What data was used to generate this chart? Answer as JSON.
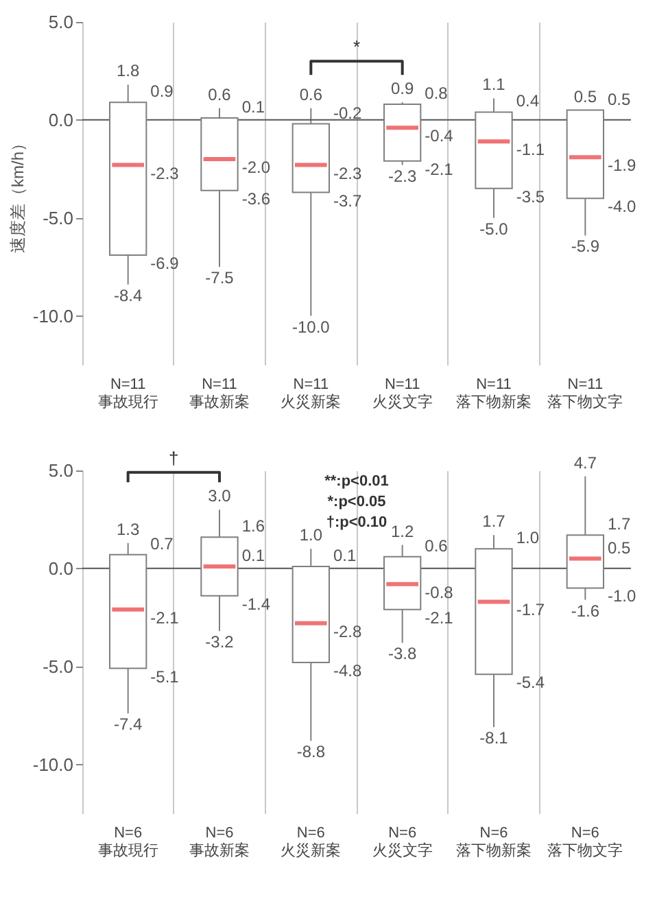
{
  "chart_data": [
    {
      "type": "box",
      "ylabel": "速度差（km/h）",
      "categories": [
        "N=11\n事故現行",
        "N=11\n事故新案",
        "N=11\n火災新案",
        "N=11\n火災文字",
        "N=11\n落下物新案",
        "N=11\n落下物文字"
      ],
      "boxes": [
        {
          "low": -8.4,
          "q1": -6.9,
          "median": -2.3,
          "q3": 0.9,
          "high": 1.8
        },
        {
          "low": -7.5,
          "q1": -3.6,
          "median": -2.0,
          "q3": 0.1,
          "high": 0.6
        },
        {
          "low": -10.0,
          "q1": -3.7,
          "median": -2.3,
          "q3": -0.2,
          "high": 0.6
        },
        {
          "low": -2.3,
          "q1": -2.1,
          "median": -0.4,
          "q3": 0.8,
          "high": 0.9
        },
        {
          "low": -5.0,
          "q1": -3.5,
          "median": -1.1,
          "q3": 0.4,
          "high": 1.1
        },
        {
          "low": -5.9,
          "q1": -4.0,
          "median": -1.9,
          "q3": 0.5,
          "high": 0.5
        }
      ],
      "ylim": [
        -12.5,
        5
      ],
      "yticks": [
        {
          "value": -10,
          "label": "-10.0"
        },
        {
          "value": -5,
          "label": "-5.0"
        },
        {
          "value": 0,
          "label": "0.0"
        },
        {
          "value": 5,
          "label": "5.0"
        }
      ],
      "grid": "x",
      "ref_lines": [
        {
          "axis": "y",
          "value": 0
        }
      ],
      "annotations": [
        "*",
        {
          "text": "1.8",
          "x": "N=11\n事故現行",
          "y": 1.8
        },
        {
          "text": "0.9",
          "x": "N=11\n事故現行",
          "y": 0.9
        },
        {
          "text": "-2.3",
          "x": "N=11\n事故現行",
          "y": -2.3
        },
        {
          "text": "-6.9",
          "x": "N=11\n事故現行",
          "y": -6.9
        },
        {
          "text": "-8.4",
          "x": "N=11\n事故現行",
          "y": -8.4
        },
        {
          "text": "0.6",
          "x": "N=11\n事故新案",
          "y": 0.6
        },
        {
          "text": "0.1",
          "x": "N=11\n事故新案",
          "y": 0.1
        },
        {
          "text": "-2.0",
          "x": "N=11\n事故新案",
          "y": -2.0
        },
        {
          "text": "-3.6",
          "x": "N=11\n事故新案",
          "y": -3.6
        },
        {
          "text": "-7.5",
          "x": "N=11\n事故新案",
          "y": -7.5
        },
        {
          "text": "0.6",
          "x": "N=11\n火災新案",
          "y": 0.6
        },
        {
          "text": "-0.2",
          "x": "N=11\n火災新案",
          "y": -0.2
        },
        {
          "text": "-2.3",
          "x": "N=11\n火災新案",
          "y": -2.3
        },
        {
          "text": "-3.7",
          "x": "N=11\n火災新案",
          "y": -3.7
        },
        {
          "text": "-10.0",
          "x": "N=11\n火災新案",
          "y": -10.0
        },
        {
          "text": "0.9",
          "x": "N=11\n火災文字",
          "y": 0.9
        },
        {
          "text": "0.8",
          "x": "N=11\n火災文字",
          "y": 0.8
        },
        {
          "text": "-0.4",
          "x": "N=11\n火災文字",
          "y": -0.4
        },
        {
          "text": "-2.1",
          "x": "N=11\n火災文字",
          "y": -2.1
        },
        {
          "text": "-2.3",
          "x": "N=11\n火災文字",
          "y": -2.3
        },
        {
          "text": "1.1",
          "x": "N=11\n落下物新案",
          "y": 1.1
        },
        {
          "text": "0.4",
          "x": "N=11\n落下物新案",
          "y": 0.4
        },
        {
          "text": "-1.1",
          "x": "N=11\n落下物新案",
          "y": -1.1
        },
        {
          "text": "-3.5",
          "x": "N=11\n落下物新案",
          "y": -3.5
        },
        {
          "text": "-5.0",
          "x": "N=11\n落下物新案",
          "y": -5.0
        },
        {
          "text": "0.5",
          "x": "N=11\n落下物文字",
          "y": 0.5
        },
        {
          "text": "0.5",
          "x": "N=11\n落下物文字",
          "y": 0.5
        },
        {
          "text": "-1.9",
          "x": "N=11\n落下物文字",
          "y": -1.9
        },
        {
          "text": "-4.0",
          "x": "N=11\n落下物文字",
          "y": -4.0
        },
        {
          "text": "-5.9",
          "x": "N=11\n落下物文字",
          "y": -5.9
        }
      ]
    },
    {
      "type": "box",
      "categories": [
        "N=6\n事故現行",
        "N=6\n事故新案",
        "N=6\n火災新案",
        "N=6\n火災文字",
        "N=6\n落下物新案",
        "N=6\n落下物文字"
      ],
      "boxes": [
        {
          "low": -7.4,
          "q1": -5.1,
          "median": -2.1,
          "q3": 0.7,
          "high": 1.3
        },
        {
          "low": -3.2,
          "q1": -1.4,
          "median": 0.1,
          "q3": 1.6,
          "high": 3.0
        },
        {
          "low": -8.8,
          "q1": -4.8,
          "median": -2.8,
          "q3": 0.1,
          "high": 1.0
        },
        {
          "low": -3.8,
          "q1": -2.1,
          "median": -0.8,
          "q3": 0.6,
          "high": 1.2
        },
        {
          "low": -8.1,
          "q1": -5.4,
          "median": -1.7,
          "q3": 1.0,
          "high": 1.7
        },
        {
          "low": -1.6,
          "q1": -1.0,
          "median": 0.5,
          "q3": 1.7,
          "high": 4.7
        }
      ],
      "ylim": [
        -12.5,
        5
      ],
      "yticks": [
        {
          "value": -10,
          "label": "-10.0"
        },
        {
          "value": -5,
          "label": "-5.0"
        },
        {
          "value": 0,
          "label": "0.0"
        },
        {
          "value": 5,
          "label": "5.0"
        }
      ],
      "grid": "x",
      "ref_lines": [
        {
          "axis": "y",
          "value": 0
        }
      ],
      "annotations": [
        "†",
        "**:p<0.01",
        "*:p<0.05",
        "†:p<0.10",
        {
          "text": "1.3",
          "x": "N=6\n事故現行",
          "y": 1.3
        },
        {
          "text": "0.7",
          "x": "N=6\n事故現行",
          "y": 0.7
        },
        {
          "text": "-2.1",
          "x": "N=6\n事故現行",
          "y": -2.1
        },
        {
          "text": "-5.1",
          "x": "N=6\n事故現行",
          "y": -5.1
        },
        {
          "text": "-7.4",
          "x": "N=6\n事故現行",
          "y": -7.4
        },
        {
          "text": "3.0",
          "x": "N=6\n事故新案",
          "y": 3.0
        },
        {
          "text": "1.6",
          "x": "N=6\n事故新案",
          "y": 1.6
        },
        {
          "text": "0.1",
          "x": "N=6\n事故新案",
          "y": 0.1
        },
        {
          "text": "-1.4",
          "x": "N=6\n事故新案",
          "y": -1.4
        },
        {
          "text": "-3.2",
          "x": "N=6\n事故新案",
          "y": -3.2
        },
        {
          "text": "1.0",
          "x": "N=6\n火災新案",
          "y": 1.0
        },
        {
          "text": "0.1",
          "x": "N=6\n火災新案",
          "y": 0.1
        },
        {
          "text": "-2.8",
          "x": "N=6\n火災新案",
          "y": -2.8
        },
        {
          "text": "-4.8",
          "x": "N=6\n火災新案",
          "y": -4.8
        },
        {
          "text": "-8.8",
          "x": "N=6\n火災新案",
          "y": -8.8
        },
        {
          "text": "1.2",
          "x": "N=6\n火災文字",
          "y": 1.2
        },
        {
          "text": "0.6",
          "x": "N=6\n火災文字",
          "y": 0.6
        },
        {
          "text": "-0.8",
          "x": "N=6\n火災文字",
          "y": -0.8
        },
        {
          "text": "-2.1",
          "x": "N=6\n火災文字",
          "y": -2.1
        },
        {
          "text": "-3.8",
          "x": "N=6\n火災文字",
          "y": -3.8
        },
        {
          "text": "1.7",
          "x": "N=6\n落下物新案",
          "y": 1.7
        },
        {
          "text": "1.0",
          "x": "N=6\n落下物新案",
          "y": 1.0
        },
        {
          "text": "-1.7",
          "x": "N=6\n落下物新案",
          "y": -1.7
        },
        {
          "text": "-5.4",
          "x": "N=6\n落下物新案",
          "y": -5.4
        },
        {
          "text": "-8.1",
          "x": "N=6\n落下物新案",
          "y": -8.1
        },
        {
          "text": "4.7",
          "x": "N=6\n落下物文字",
          "y": 4.7
        },
        {
          "text": "1.7",
          "x": "N=6\n落下物文字",
          "y": 1.7
        },
        {
          "text": "0.5",
          "x": "N=6\n落下物文字",
          "y": 0.5
        },
        {
          "text": "-1.0",
          "x": "N=6\n落下物文字",
          "y": -1.0
        },
        {
          "text": "-1.6",
          "x": "N=6\n落下物文字",
          "y": -1.6
        }
      ]
    }
  ]
}
